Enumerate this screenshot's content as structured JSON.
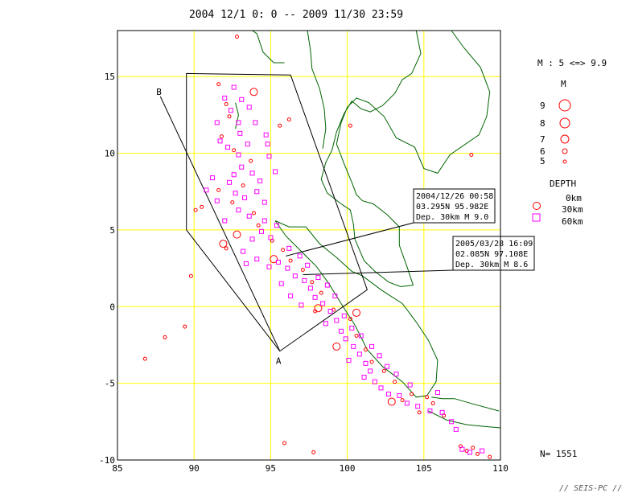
{
  "title": "2004 12/1  0: 0 -- 2009 11/30 23:59",
  "credit": "// SEIS-PC //",
  "count_label": "N= 1551",
  "legend": {
    "mag_range": "M : 5 <=> 9.9",
    "mag_title": "M",
    "mags": [
      "9",
      "8",
      "7",
      "6",
      "5"
    ],
    "depth_title": "DEPTH",
    "depths": [
      "0km",
      "30km",
      "60km"
    ]
  },
  "colors": {
    "grid": "#ffff00",
    "coast": "#006400",
    "shallow": "#ff0000",
    "deep": "#ff00ff",
    "frame": "#000000"
  },
  "chart_data": {
    "type": "scatter",
    "title": "2004 12/1  0: 0 -- 2009 11/30 23:59",
    "xlim": [
      85,
      110
    ],
    "ylim": [
      -10,
      18
    ],
    "xticks": [
      "85",
      "90",
      "95",
      "100",
      "105",
      "110"
    ],
    "yticks": [
      "-10",
      "-5",
      "0",
      "5",
      "10",
      "15"
    ],
    "grid": true,
    "total_events": 1551,
    "section_polygon": [
      [
        89.5,
        15.2
      ],
      [
        96.3,
        15.1
      ],
      [
        101.3,
        1.1
      ],
      [
        95.6,
        -2.9
      ],
      [
        89.5,
        5.0
      ]
    ],
    "section_line": {
      "A": [
        95.6,
        -2.9
      ],
      "B": [
        87.8,
        13.7
      ]
    },
    "annotations": [
      {
        "lines": [
          "2004/12/26 00:58",
          "03.295N   95.982E",
          "Dep. 30km   M 9.0"
        ],
        "lon": 95.982,
        "lat": 3.295
      },
      {
        "lines": [
          "2005/03/28 16:09",
          "02.085N   97.108E",
          "Dep. 30km   M 8.6"
        ],
        "lon": 97.108,
        "lat": 2.085
      }
    ],
    "series": [
      {
        "name": "0km",
        "symbol": "circle",
        "points": [
          [
            92.8,
            17.6
          ],
          [
            91.6,
            14.5
          ],
          [
            92.1,
            13.2
          ],
          [
            92.3,
            12.4
          ],
          [
            91.8,
            11.1
          ],
          [
            92.6,
            10.2
          ],
          [
            93.7,
            9.5
          ],
          [
            93.2,
            7.9
          ],
          [
            92.5,
            6.8
          ],
          [
            93.9,
            6.1
          ],
          [
            94.2,
            5.3
          ],
          [
            95.1,
            4.3
          ],
          [
            95.8,
            3.7
          ],
          [
            96.3,
            3.0
          ],
          [
            97.1,
            2.4
          ],
          [
            97.7,
            1.6
          ],
          [
            98.3,
            0.9
          ],
          [
            99.1,
            -0.2
          ],
          [
            100.2,
            -0.8
          ],
          [
            100.6,
            -1.9
          ],
          [
            101.2,
            -2.8
          ],
          [
            101.6,
            -3.6
          ],
          [
            102.4,
            -4.2
          ],
          [
            103.1,
            -4.9
          ],
          [
            104.2,
            -5.7
          ],
          [
            105.6,
            -6.3
          ],
          [
            106.3,
            -7.1
          ],
          [
            107.4,
            -9.1
          ],
          [
            107.8,
            -9.4
          ],
          [
            108.2,
            -9.2
          ],
          [
            108.5,
            -9.6
          ],
          [
            109.3,
            -9.8
          ],
          [
            90.5,
            6.5
          ],
          [
            90.1,
            6.3
          ],
          [
            89.8,
            2.0
          ],
          [
            89.4,
            -1.3
          ],
          [
            88.1,
            -2.0
          ],
          [
            86.8,
            -3.4
          ],
          [
            95.9,
            -8.9
          ],
          [
            97.8,
            -9.5
          ],
          [
            100.2,
            11.8
          ],
          [
            108.1,
            9.9
          ],
          [
            103.6,
            -6.1
          ],
          [
            105.2,
            -5.9
          ],
          [
            104.7,
            -6.9
          ],
          [
            96.2,
            12.2
          ],
          [
            95.6,
            11.8
          ],
          [
            92.1,
            3.8
          ],
          [
            91.6,
            7.6
          ],
          [
            97.9,
            -0.3
          ]
        ]
      },
      {
        "name": "30km",
        "symbol": "circle-large",
        "points": [
          [
            93.9,
            14.0
          ],
          [
            92.8,
            4.7
          ],
          [
            91.9,
            4.1
          ],
          [
            95.2,
            3.1
          ],
          [
            99.3,
            -2.6
          ],
          [
            100.6,
            -0.4
          ],
          [
            98.1,
            -0.1
          ],
          [
            102.9,
            -6.2
          ]
        ]
      },
      {
        "name": "60km",
        "symbol": "square",
        "points": [
          [
            92.6,
            14.3
          ],
          [
            93.1,
            13.5
          ],
          [
            92.4,
            12.8
          ],
          [
            92.9,
            12.0
          ],
          [
            91.7,
            10.8
          ],
          [
            92.2,
            10.4
          ],
          [
            92.9,
            9.9
          ],
          [
            93.5,
            10.6
          ],
          [
            93.1,
            9.1
          ],
          [
            92.6,
            8.6
          ],
          [
            92.3,
            8.1
          ],
          [
            93.8,
            8.7
          ],
          [
            94.3,
            8.2
          ],
          [
            94.1,
            7.5
          ],
          [
            93.3,
            7.1
          ],
          [
            92.9,
            6.3
          ],
          [
            93.6,
            5.9
          ],
          [
            94.6,
            5.6
          ],
          [
            94.4,
            4.9
          ],
          [
            93.8,
            4.4
          ],
          [
            93.2,
            3.6
          ],
          [
            94.1,
            3.1
          ],
          [
            94.9,
            2.6
          ],
          [
            95.5,
            2.9
          ],
          [
            96.1,
            2.5
          ],
          [
            96.6,
            2.0
          ],
          [
            97.2,
            1.7
          ],
          [
            97.6,
            1.2
          ],
          [
            97.9,
            0.6
          ],
          [
            98.4,
            0.2
          ],
          [
            98.9,
            -0.3
          ],
          [
            99.3,
            -0.9
          ],
          [
            99.6,
            -1.6
          ],
          [
            99.9,
            -2.1
          ],
          [
            100.4,
            -2.6
          ],
          [
            100.8,
            -3.1
          ],
          [
            101.2,
            -3.7
          ],
          [
            101.5,
            -4.2
          ],
          [
            101.1,
            -4.6
          ],
          [
            101.8,
            -4.9
          ],
          [
            102.2,
            -5.3
          ],
          [
            102.7,
            -5.7
          ],
          [
            103.4,
            -5.8
          ],
          [
            103.9,
            -6.3
          ],
          [
            104.6,
            -6.5
          ],
          [
            105.4,
            -6.8
          ],
          [
            106.2,
            -6.9
          ],
          [
            106.8,
            -7.5
          ],
          [
            107.1,
            -8.0
          ],
          [
            107.5,
            -9.3
          ],
          [
            108.0,
            -9.5
          ],
          [
            108.8,
            -9.4
          ],
          [
            94.7,
            11.2
          ],
          [
            94.0,
            12.0
          ],
          [
            93.6,
            13.0
          ],
          [
            95.0,
            4.5
          ],
          [
            95.4,
            5.3
          ],
          [
            96.2,
            3.8
          ],
          [
            96.9,
            3.3
          ],
          [
            97.4,
            2.7
          ],
          [
            98.1,
            1.9
          ],
          [
            98.7,
            1.4
          ],
          [
            99.2,
            0.7
          ],
          [
            99.8,
            -0.6
          ],
          [
            100.3,
            -1.4
          ],
          [
            100.9,
            -1.9
          ],
          [
            101.6,
            -2.6
          ],
          [
            102.1,
            -3.2
          ],
          [
            102.6,
            -3.9
          ],
          [
            103.2,
            -4.4
          ],
          [
            90.8,
            7.6
          ],
          [
            91.2,
            8.4
          ],
          [
            91.5,
            6.9
          ],
          [
            92.0,
            5.6
          ],
          [
            93.4,
            2.8
          ],
          [
            95.7,
            1.5
          ],
          [
            96.3,
            0.7
          ],
          [
            97.0,
            0.1
          ],
          [
            98.6,
            -1.1
          ],
          [
            100.1,
            -3.5
          ],
          [
            104.1,
            -5.1
          ],
          [
            105.9,
            -5.6
          ],
          [
            92.0,
            13.6
          ],
          [
            91.5,
            12.0
          ],
          [
            94.9,
            9.8
          ],
          [
            95.3,
            8.8
          ],
          [
            94.6,
            6.8
          ],
          [
            93.0,
            11.3
          ],
          [
            92.7,
            7.4
          ],
          [
            94.8,
            10.6
          ]
        ]
      }
    ]
  }
}
